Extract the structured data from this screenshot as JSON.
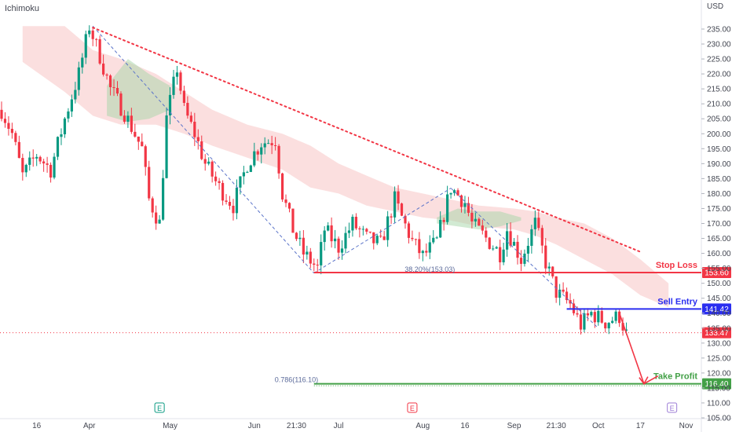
{
  "indicator_label": "Ichimoku",
  "chart_data": {
    "type": "candlestick",
    "y_unit": "USD",
    "ylim": [
      104,
      238
    ],
    "y_ticks": [
      105,
      110,
      115,
      120,
      125,
      130,
      135,
      140,
      145,
      150,
      155,
      160,
      165,
      170,
      175,
      180,
      185,
      190,
      195,
      200,
      205,
      210,
      215,
      220,
      225,
      230,
      235
    ],
    "y_tick_labels": [
      "105.00",
      "110.00",
      "115.00",
      "120.00",
      "125.00",
      "130.00",
      "135.00",
      "140.00",
      "145.00",
      "150.00",
      "155.00",
      "160.00",
      "165.00",
      "170.00",
      "175.00",
      "180.00",
      "185.00",
      "190.00",
      "195.00",
      "200.00",
      "205.00",
      "210.00",
      "215.00",
      "220.00",
      "225.00",
      "230.00",
      "235.00"
    ],
    "x_range": [
      0,
      196
    ],
    "x_ticks": [
      {
        "t": 10,
        "label": "16"
      },
      {
        "t": 25,
        "label": "Apr"
      },
      {
        "t": 48,
        "label": "May"
      },
      {
        "t": 72,
        "label": "Jun"
      },
      {
        "t": 84,
        "label": "21:30"
      },
      {
        "t": 96,
        "label": "Jul"
      },
      {
        "t": 120,
        "label": "Aug"
      },
      {
        "t": 132,
        "label": "16"
      },
      {
        "t": 146,
        "label": "Sep"
      },
      {
        "t": 158,
        "label": "21:30"
      },
      {
        "t": 170,
        "label": "Oct"
      },
      {
        "t": 182,
        "label": "17"
      },
      {
        "t": 195,
        "label": "Nov"
      }
    ],
    "events": [
      {
        "t": 45,
        "label": "E",
        "color": "#089981"
      },
      {
        "t": 117,
        "label": "E",
        "color": "#f23645"
      },
      {
        "t": 191,
        "label": "E",
        "color": "#9c7cd6"
      }
    ],
    "close_waypoints": [
      [
        0,
        208
      ],
      [
        3,
        200
      ],
      [
        6,
        186
      ],
      [
        10,
        193
      ],
      [
        14,
        188
      ],
      [
        18,
        205
      ],
      [
        22,
        220
      ],
      [
        25,
        236
      ],
      [
        28,
        226
      ],
      [
        31,
        215
      ],
      [
        35,
        207
      ],
      [
        40,
        195
      ],
      [
        42,
        178
      ],
      [
        45,
        170
      ],
      [
        47,
        205
      ],
      [
        50,
        222
      ],
      [
        52,
        208
      ],
      [
        55,
        200
      ],
      [
        58,
        190
      ],
      [
        62,
        182
      ],
      [
        66,
        176
      ],
      [
        70,
        190
      ],
      [
        74,
        197
      ],
      [
        78,
        198
      ],
      [
        80,
        180
      ],
      [
        83,
        168
      ],
      [
        86,
        160
      ],
      [
        90,
        155
      ],
      [
        92,
        168
      ],
      [
        96,
        162
      ],
      [
        100,
        170
      ],
      [
        104,
        165
      ],
      [
        108,
        163
      ],
      [
        112,
        178
      ],
      [
        114,
        172
      ],
      [
        117,
        164
      ],
      [
        120,
        159
      ],
      [
        124,
        164
      ],
      [
        128,
        182
      ],
      [
        132,
        177
      ],
      [
        134,
        170
      ],
      [
        138,
        165
      ],
      [
        142,
        160
      ],
      [
        144,
        168
      ],
      [
        148,
        158
      ],
      [
        152,
        170
      ],
      [
        155,
        157
      ],
      [
        158,
        147
      ],
      [
        162,
        143
      ],
      [
        165,
        136
      ],
      [
        168,
        140
      ],
      [
        172,
        137
      ],
      [
        176,
        139
      ],
      [
        178,
        133
      ]
    ],
    "ichimoku_cloud_upper": [
      [
        6,
        236
      ],
      [
        18,
        236
      ],
      [
        22,
        232
      ],
      [
        26,
        228
      ],
      [
        34,
        225
      ],
      [
        44,
        220
      ],
      [
        52,
        214
      ],
      [
        60,
        208
      ],
      [
        70,
        203
      ],
      [
        80,
        200
      ],
      [
        88,
        196
      ],
      [
        96,
        190
      ],
      [
        104,
        186
      ],
      [
        112,
        182
      ],
      [
        120,
        180
      ],
      [
        128,
        178
      ],
      [
        136,
        176
      ],
      [
        146,
        175
      ],
      [
        152,
        174
      ],
      [
        158,
        172
      ],
      [
        166,
        170
      ],
      [
        174,
        165
      ],
      [
        182,
        158
      ],
      [
        190,
        150
      ]
    ],
    "ichimoku_cloud_lower": [
      [
        6,
        224
      ],
      [
        18,
        214
      ],
      [
        22,
        210
      ],
      [
        26,
        206
      ],
      [
        34,
        203
      ],
      [
        44,
        203
      ],
      [
        52,
        200
      ],
      [
        60,
        196
      ],
      [
        70,
        192
      ],
      [
        80,
        188
      ],
      [
        88,
        182
      ],
      [
        96,
        180
      ],
      [
        104,
        176
      ],
      [
        112,
        174
      ],
      [
        120,
        172
      ],
      [
        128,
        171
      ],
      [
        136,
        169
      ],
      [
        146,
        168
      ],
      [
        152,
        166
      ],
      [
        158,
        163
      ],
      [
        166,
        158
      ],
      [
        174,
        153
      ],
      [
        182,
        146
      ],
      [
        190,
        142
      ]
    ],
    "green_cloud_bands": [
      {
        "upper": [
          [
            30,
            216
          ],
          [
            36,
            225
          ],
          [
            42,
            220
          ],
          [
            48,
            216
          ]
        ],
        "lower": [
          [
            30,
            206
          ],
          [
            36,
            204
          ],
          [
            42,
            205
          ],
          [
            48,
            208
          ]
        ]
      },
      {
        "upper": [
          [
            124,
            172
          ],
          [
            130,
            175
          ],
          [
            136,
            174
          ],
          [
            142,
            174
          ],
          [
            148,
            172
          ]
        ],
        "lower": [
          [
            124,
            170
          ],
          [
            130,
            169
          ],
          [
            136,
            168
          ],
          [
            142,
            169
          ],
          [
            148,
            171
          ]
        ]
      }
    ],
    "trendline": {
      "from": [
        26,
        235.5
      ],
      "to": [
        182,
        160.5
      ],
      "color": "#f23645",
      "style": "dotted"
    },
    "harmonic_legs": [
      {
        "from": [
          26,
          236
        ],
        "to": [
          89,
          153.4
        ]
      },
      {
        "from": [
          89,
          153.4
        ],
        "to": [
          128,
          181.8
        ]
      },
      {
        "from": [
          128,
          181.8
        ],
        "to": [
          170,
          135
        ]
      }
    ],
    "levels": [
      {
        "name": "stop-loss",
        "label": "Stop Loss",
        "value": 153.6,
        "value_label": "153.60",
        "color": "#f23645",
        "from_t": 89
      },
      {
        "name": "sell-entry",
        "label": "Sell Entry",
        "value": 141.42,
        "value_label": "141.42",
        "color": "#2a2ef0",
        "from_t": 161
      },
      {
        "name": "take-profit",
        "label": "Take Profit",
        "value": 116.4,
        "value_label": "116.40",
        "color": "#43a047",
        "from_t": 89
      }
    ],
    "current_price": {
      "value": 133.47,
      "label": "133.47",
      "color": "#f23645"
    },
    "fib_labels": [
      {
        "text": "38.20%(153.03)",
        "t": 122,
        "value": 153.03
      },
      {
        "text": "0.786(116.10)",
        "t": 84,
        "value": 116.1
      }
    ],
    "projection_arrow": {
      "points": [
        [
          176,
          140
        ],
        [
          183,
          116.4
        ],
        [
          187,
          119
        ]
      ],
      "color": "#f23645"
    }
  }
}
